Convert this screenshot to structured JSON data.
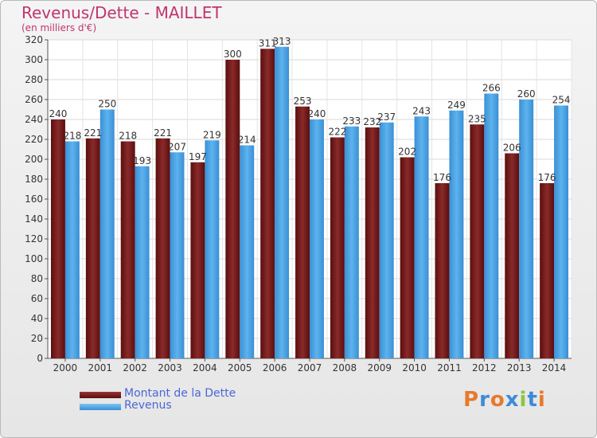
{
  "chart_data": {
    "type": "bar",
    "title": "Revenus/Dette - MAILLET",
    "subtitle": "(en milliers d'€)",
    "categories": [
      "2000",
      "2001",
      "2002",
      "2003",
      "2004",
      "2005",
      "2006",
      "2007",
      "2008",
      "2009",
      "2010",
      "2011",
      "2012",
      "2013",
      "2014"
    ],
    "series": [
      {
        "name": "Montant de la Dette",
        "color": "#7a1e1e",
        "values": [
          240,
          221,
          218,
          221,
          197,
          300,
          311,
          253,
          222,
          232,
          202,
          176,
          235,
          206,
          176
        ]
      },
      {
        "name": "Revenus",
        "color": "#4fa6e6",
        "values": [
          218,
          250,
          193,
          207,
          219,
          214,
          313,
          240,
          233,
          237,
          243,
          249,
          266,
          260,
          254
        ]
      }
    ],
    "ylim": [
      0,
      320
    ],
    "yticks": [
      0,
      20,
      40,
      60,
      80,
      100,
      120,
      140,
      160,
      180,
      200,
      220,
      240,
      260,
      280,
      300,
      320
    ],
    "grid": true,
    "legend_position": "bottom-left"
  },
  "logo": {
    "text": "Proxiti"
  }
}
